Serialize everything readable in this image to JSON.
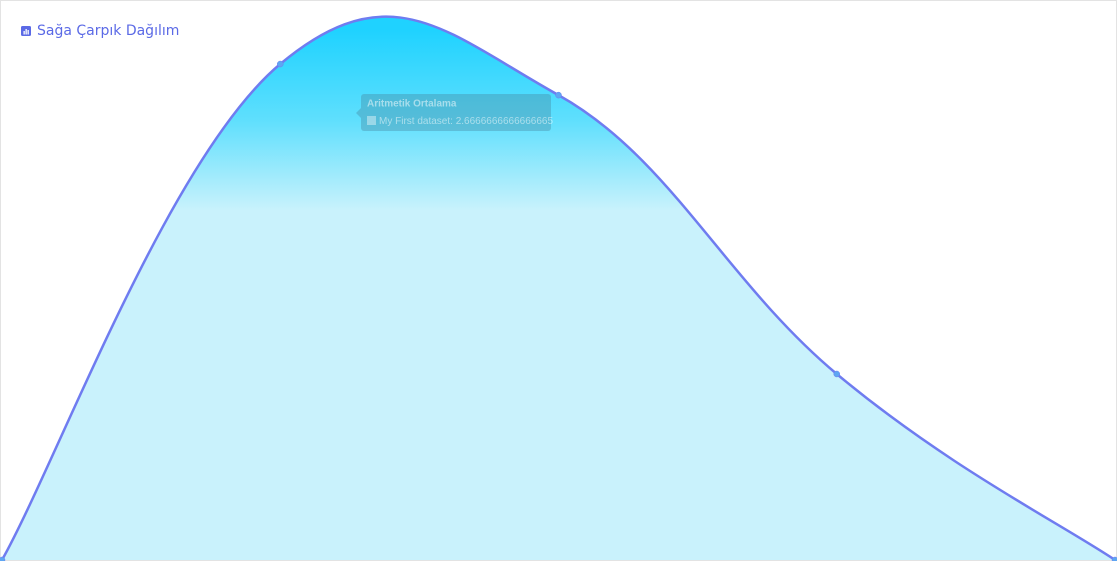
{
  "chart_data": {
    "type": "area",
    "title": "Sağa Çarpık Dağılım",
    "categories": [
      null,
      null,
      "Aritmetik Ortalama",
      null,
      null
    ],
    "series": [
      {
        "name": "My First dataset",
        "color": "#6f7cf0",
        "values": [
          0,
          2.845,
          2.6666666666666665,
          1.067,
          0
        ]
      }
    ],
    "ylim": [
      0,
      3
    ],
    "tooltip_index": 2
  }
}
